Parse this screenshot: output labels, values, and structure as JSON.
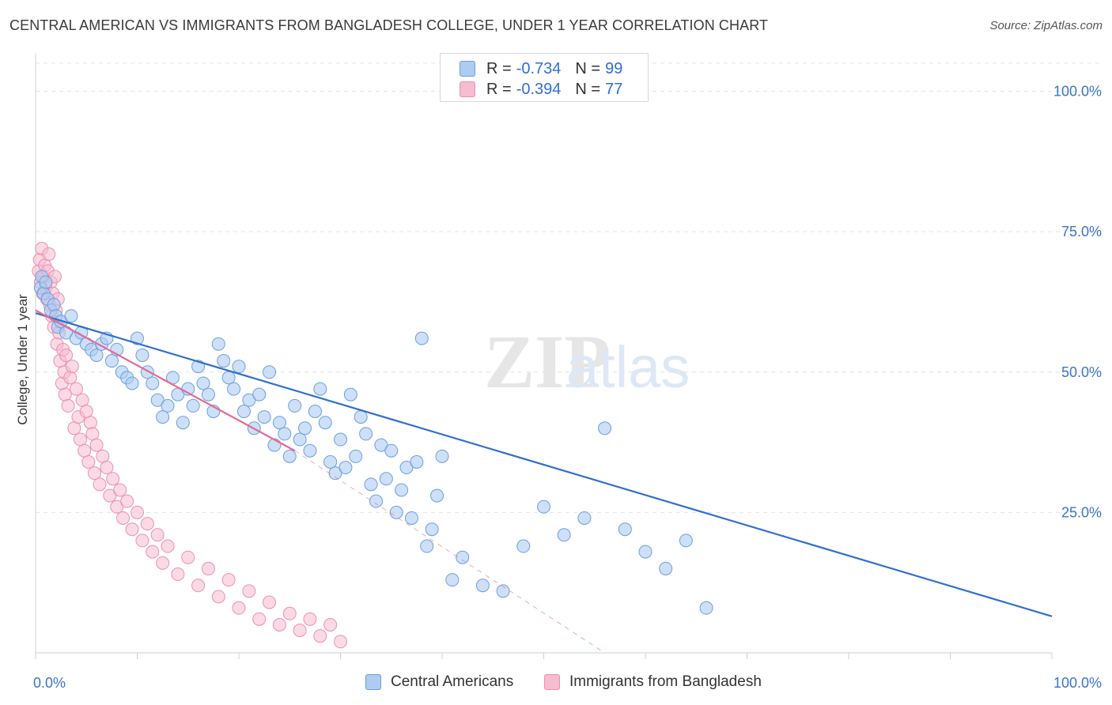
{
  "title": "CENTRAL AMERICAN VS IMMIGRANTS FROM BANGLADESH COLLEGE, UNDER 1 YEAR CORRELATION CHART",
  "source": "Source: ZipAtlas.com",
  "watermark": {
    "zip": "ZIP",
    "atlas": "atlas"
  },
  "legend": {
    "r_label": "R =",
    "n_label": "N =",
    "items": [
      {
        "name": "Central Americans",
        "r": "-0.734",
        "n": "99"
      },
      {
        "name": "Immigrants from Bangladesh",
        "r": "-0.394",
        "n": "77"
      }
    ]
  },
  "colors": {
    "blue_fill": "#aecbf2",
    "blue_stroke": "#6a9fe0",
    "blue_line": "#2f6fd0",
    "pink_fill": "#f7bcd0",
    "pink_stroke": "#eb8fb0",
    "pink_line": "#e36a93",
    "axis_label": "#3b74cc"
  },
  "chart_data": {
    "type": "scatter",
    "title": "CENTRAL AMERICAN VS IMMIGRANTS FROM BANGLADESH COLLEGE, UNDER 1 YEAR CORRELATION CHART",
    "xlabel": "",
    "ylabel": "College, Under 1 year",
    "xlim": [
      0,
      100
    ],
    "ylim": [
      0,
      105
    ],
    "x_tick_labels": [
      "0.0%",
      "100.0%"
    ],
    "y_ticks": [
      25,
      50,
      75,
      100
    ],
    "y_tick_labels": [
      "25.0%",
      "50.0%",
      "75.0%",
      "100.0%"
    ],
    "grid": true,
    "legend_position": "top-center",
    "series": [
      {
        "name": "Central Americans",
        "points": [
          [
            0.5,
            65
          ],
          [
            0.6,
            67
          ],
          [
            0.8,
            64
          ],
          [
            1,
            66
          ],
          [
            1.2,
            63
          ],
          [
            1.5,
            61
          ],
          [
            1.8,
            62
          ],
          [
            2,
            60
          ],
          [
            2.2,
            58
          ],
          [
            2.5,
            59
          ],
          [
            3,
            57
          ],
          [
            3.5,
            60
          ],
          [
            4,
            56
          ],
          [
            4.5,
            57
          ],
          [
            5,
            55
          ],
          [
            5.5,
            54
          ],
          [
            6,
            53
          ],
          [
            6.5,
            55
          ],
          [
            7,
            56
          ],
          [
            7.5,
            52
          ],
          [
            8,
            54
          ],
          [
            8.5,
            50
          ],
          [
            9,
            49
          ],
          [
            9.5,
            48
          ],
          [
            10,
            56
          ],
          [
            10.5,
            53
          ],
          [
            11,
            50
          ],
          [
            11.5,
            48
          ],
          [
            12,
            45
          ],
          [
            12.5,
            42
          ],
          [
            13,
            44
          ],
          [
            13.5,
            49
          ],
          [
            14,
            46
          ],
          [
            14.5,
            41
          ],
          [
            15,
            47
          ],
          [
            15.5,
            44
          ],
          [
            16,
            51
          ],
          [
            16.5,
            48
          ],
          [
            17,
            46
          ],
          [
            17.5,
            43
          ],
          [
            18,
            55
          ],
          [
            18.5,
            52
          ],
          [
            19,
            49
          ],
          [
            19.5,
            47
          ],
          [
            20,
            51
          ],
          [
            20.5,
            43
          ],
          [
            21,
            45
          ],
          [
            21.5,
            40
          ],
          [
            22,
            46
          ],
          [
            22.5,
            42
          ],
          [
            23,
            50
          ],
          [
            23.5,
            37
          ],
          [
            24,
            41
          ],
          [
            24.5,
            39
          ],
          [
            25,
            35
          ],
          [
            25.5,
            44
          ],
          [
            26,
            38
          ],
          [
            26.5,
            40
          ],
          [
            27,
            36
          ],
          [
            27.5,
            43
          ],
          [
            28,
            47
          ],
          [
            28.5,
            41
          ],
          [
            29,
            34
          ],
          [
            29.5,
            32
          ],
          [
            30,
            38
          ],
          [
            30.5,
            33
          ],
          [
            31,
            46
          ],
          [
            31.5,
            35
          ],
          [
            32,
            42
          ],
          [
            32.5,
            39
          ],
          [
            33,
            30
          ],
          [
            33.5,
            27
          ],
          [
            34,
            37
          ],
          [
            34.5,
            31
          ],
          [
            35,
            36
          ],
          [
            35.5,
            25
          ],
          [
            36,
            29
          ],
          [
            36.5,
            33
          ],
          [
            37,
            24
          ],
          [
            37.5,
            34
          ],
          [
            38,
            56
          ],
          [
            38.5,
            19
          ],
          [
            39,
            22
          ],
          [
            39.5,
            28
          ],
          [
            40,
            35
          ],
          [
            41,
            13
          ],
          [
            42,
            17
          ],
          [
            44,
            12
          ],
          [
            46,
            11
          ],
          [
            48,
            19
          ],
          [
            50,
            26
          ],
          [
            52,
            21
          ],
          [
            54,
            24
          ],
          [
            56,
            40
          ],
          [
            58,
            22
          ],
          [
            60,
            18
          ],
          [
            62,
            15
          ],
          [
            64,
            20
          ],
          [
            66,
            8
          ]
        ]
      },
      {
        "name": "Immigrants from Bangladesh",
        "points": [
          [
            0.3,
            68
          ],
          [
            0.4,
            70
          ],
          [
            0.5,
            66
          ],
          [
            0.6,
            72
          ],
          [
            0.7,
            64
          ],
          [
            0.8,
            67
          ],
          [
            0.9,
            69
          ],
          [
            1,
            65
          ],
          [
            1.1,
            63
          ],
          [
            1.2,
            68
          ],
          [
            1.3,
            71
          ],
          [
            1.4,
            62
          ],
          [
            1.5,
            66
          ],
          [
            1.6,
            60
          ],
          [
            1.7,
            64
          ],
          [
            1.8,
            58
          ],
          [
            1.9,
            67
          ],
          [
            2,
            61
          ],
          [
            2.1,
            55
          ],
          [
            2.2,
            63
          ],
          [
            2.3,
            57
          ],
          [
            2.4,
            52
          ],
          [
            2.5,
            59
          ],
          [
            2.6,
            48
          ],
          [
            2.7,
            54
          ],
          [
            2.8,
            50
          ],
          [
            2.9,
            46
          ],
          [
            3,
            53
          ],
          [
            3.2,
            44
          ],
          [
            3.4,
            49
          ],
          [
            3.6,
            51
          ],
          [
            3.8,
            40
          ],
          [
            4,
            47
          ],
          [
            4.2,
            42
          ],
          [
            4.4,
            38
          ],
          [
            4.6,
            45
          ],
          [
            4.8,
            36
          ],
          [
            5,
            43
          ],
          [
            5.2,
            34
          ],
          [
            5.4,
            41
          ],
          [
            5.6,
            39
          ],
          [
            5.8,
            32
          ],
          [
            6,
            37
          ],
          [
            6.3,
            30
          ],
          [
            6.6,
            35
          ],
          [
            7,
            33
          ],
          [
            7.3,
            28
          ],
          [
            7.6,
            31
          ],
          [
            8,
            26
          ],
          [
            8.3,
            29
          ],
          [
            8.6,
            24
          ],
          [
            9,
            27
          ],
          [
            9.5,
            22
          ],
          [
            10,
            25
          ],
          [
            10.5,
            20
          ],
          [
            11,
            23
          ],
          [
            11.5,
            18
          ],
          [
            12,
            21
          ],
          [
            12.5,
            16
          ],
          [
            13,
            19
          ],
          [
            14,
            14
          ],
          [
            15,
            17
          ],
          [
            16,
            12
          ],
          [
            17,
            15
          ],
          [
            18,
            10
          ],
          [
            19,
            13
          ],
          [
            20,
            8
          ],
          [
            21,
            11
          ],
          [
            22,
            6
          ],
          [
            23,
            9
          ],
          [
            24,
            5
          ],
          [
            25,
            7
          ],
          [
            26,
            4
          ],
          [
            27,
            6
          ],
          [
            28,
            3
          ],
          [
            29,
            5
          ],
          [
            30,
            2
          ]
        ]
      }
    ],
    "trend_lines": [
      {
        "series": "Central Americans",
        "from": [
          0,
          60.5
        ],
        "to": [
          100,
          6.5
        ],
        "style": "solid"
      },
      {
        "series": "Immigrants from Bangladesh",
        "from": [
          0,
          61
        ],
        "to": [
          25.5,
          36
        ],
        "style": "solid"
      },
      {
        "series": "Immigrants from Bangladesh",
        "from": [
          25.5,
          36
        ],
        "to": [
          56,
          0
        ],
        "style": "dashed"
      }
    ]
  }
}
